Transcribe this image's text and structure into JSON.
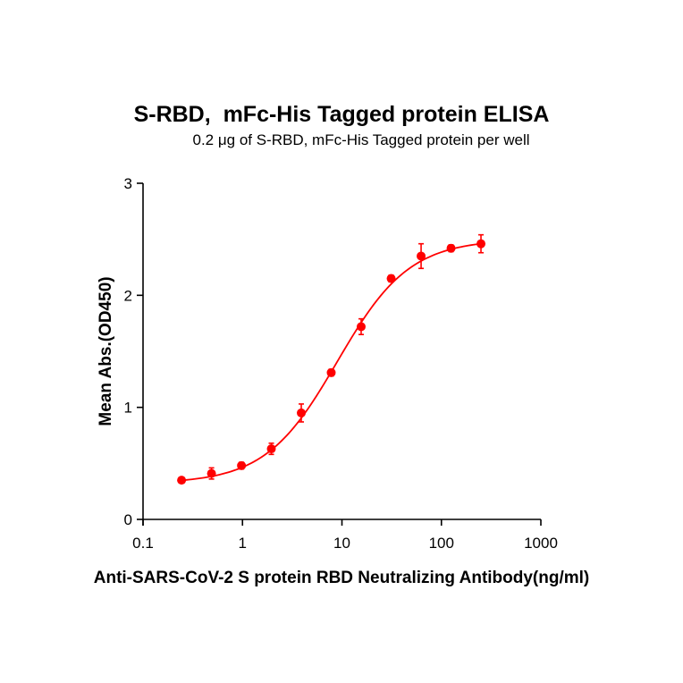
{
  "chart_data": {
    "type": "scatter",
    "title": "S-RBD,  mFc-His Tagged protein ELISA",
    "subtitle": "0.2 μg of S-RBD, mFc-His Tagged protein per well",
    "xlabel": "Anti-SARS-CoV-2 S protein RBD Neutralizing Antibody(ng/ml)",
    "ylabel": "Mean Abs.(OD450)",
    "xscale": "log",
    "xlim": [
      0.1,
      1000
    ],
    "ylim": [
      0,
      3
    ],
    "xticks": [
      "0.1",
      "1",
      "10",
      "100",
      "1000"
    ],
    "xtick_values": [
      0.1,
      1,
      10,
      100,
      1000
    ],
    "yticks": [
      "0",
      "1",
      "2",
      "3"
    ],
    "ytick_values": [
      0,
      1,
      2,
      3
    ],
    "grid": false,
    "legend": null,
    "series": [
      {
        "name": "S-RBD, mFc-His Tagged protein",
        "color": "#ff0000",
        "x": [
          0.244,
          0.488,
          0.977,
          1.95,
          3.9,
          7.8,
          15.6,
          31.25,
          62.5,
          125,
          250
        ],
        "y": [
          0.35,
          0.41,
          0.48,
          0.63,
          0.95,
          1.31,
          1.72,
          2.15,
          2.35,
          2.42,
          2.46
        ],
        "error": [
          0.02,
          0.05,
          0.03,
          0.05,
          0.08,
          0.03,
          0.07,
          0.03,
          0.11,
          0.03,
          0.08
        ],
        "fit": {
          "model": "4PL",
          "bottom": 0.32,
          "top": 2.5,
          "ec50": 9.0,
          "hill": 1.2
        }
      }
    ]
  }
}
